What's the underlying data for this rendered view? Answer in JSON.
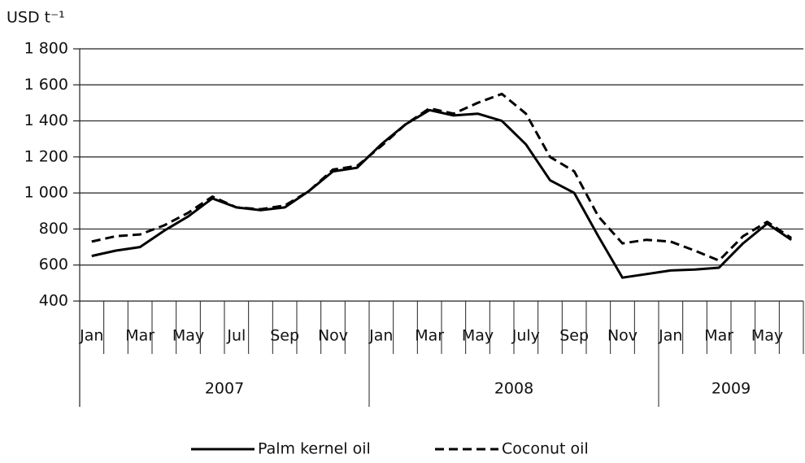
{
  "chart_data": {
    "type": "line",
    "y_label": "USD t⁻¹",
    "categories": [
      "Jan",
      null,
      "Mar",
      null,
      "May",
      null,
      "Jul",
      null,
      "Sep",
      null,
      "Nov",
      null,
      "Jan",
      null,
      "Mar",
      null,
      "May",
      null,
      "July",
      null,
      "Sep",
      null,
      "Nov",
      null,
      "Jan",
      null,
      "Mar",
      null,
      "May",
      null
    ],
    "year_groups": [
      {
        "label": "2007",
        "months": 12
      },
      {
        "label": "2008",
        "months": 12
      },
      {
        "label": "2009",
        "months": 6
      }
    ],
    "series": [
      {
        "name": "Palm kernel oil",
        "color": "#000000",
        "style": "solid",
        "values": [
          650,
          680,
          700,
          790,
          870,
          970,
          920,
          905,
          920,
          1010,
          1120,
          1140,
          1270,
          1380,
          1460,
          1430,
          1440,
          1400,
          1270,
          1070,
          1000,
          760,
          530,
          550,
          570,
          575,
          585,
          720,
          830,
          740
        ]
      },
      {
        "name": "Coconut oil",
        "color": "#000000",
        "style": "dashed",
        "values": [
          730,
          760,
          770,
          820,
          890,
          980,
          920,
          910,
          930,
          1010,
          1130,
          1150,
          1260,
          1380,
          1470,
          1440,
          1500,
          1550,
          1440,
          1200,
          1120,
          870,
          720,
          740,
          730,
          680,
          625,
          760,
          840,
          750
        ]
      }
    ],
    "ylim": [
      400,
      1800
    ],
    "yticks": [
      400,
      600,
      800,
      {
        "value": 1000,
        "label": "1 000"
      },
      {
        "value": 1200,
        "label": "1 200"
      },
      {
        "value": 1400,
        "label": "1 400"
      },
      {
        "value": 1600,
        "label": "1 600"
      },
      {
        "value": 1800,
        "label": "1 800"
      }
    ],
    "grid": true,
    "legend": "bottom"
  }
}
